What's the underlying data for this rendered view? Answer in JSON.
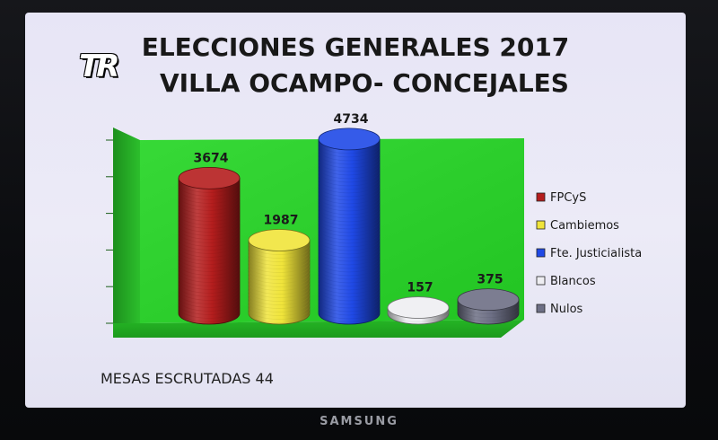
{
  "chart_data": {
    "type": "bar",
    "title": "ELECCIONES GENERALES 2017",
    "subtitle": "VILLA OCAMPO- CONCEJALES",
    "categories": [
      "FPCyS",
      "Cambiemos",
      "Fte. Justicialista",
      "Blancos",
      "Nulos"
    ],
    "values": [
      3674,
      1987,
      4734,
      157,
      375
    ],
    "value_labels": [
      "3674",
      "1987",
      "4734",
      "157",
      "375"
    ],
    "colors": [
      "#b41d1d",
      "#f0e43a",
      "#1f49e6",
      "#eeeef2",
      "#6d6f85"
    ],
    "ylim": [
      0,
      5000
    ],
    "grid": false,
    "legend_position": "right",
    "wall_color": "#29d329"
  },
  "logo_text": "TR",
  "footer": "MESAS ESCRUTADAS 44",
  "tv_brand": "SAMSUNG"
}
